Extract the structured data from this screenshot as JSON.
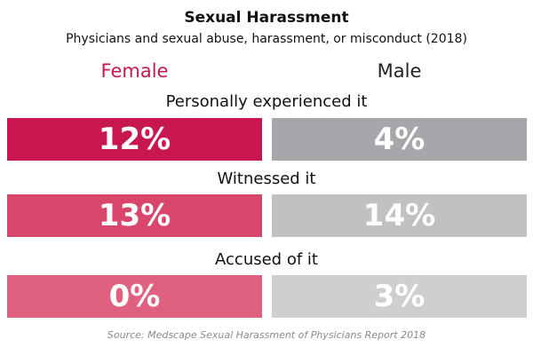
{
  "chart_data": {
    "type": "table",
    "title": "Sexual Harassment",
    "subtitle": "Physicians and sexual abuse, harassment, or misconduct (2018)",
    "columns": [
      "Female",
      "Male"
    ],
    "categories": [
      "Personally experienced it",
      "Witnessed it",
      "Accused of it"
    ],
    "series": [
      {
        "name": "Female",
        "values": [
          12,
          13,
          0
        ],
        "labels": [
          "12%",
          "13%",
          "0%"
        ]
      },
      {
        "name": "Male",
        "values": [
          4,
          14,
          3
        ],
        "labels": [
          "4%",
          "14%",
          "3%"
        ]
      }
    ],
    "colors": {
      "female": [
        "#c8174f",
        "#d8476b",
        "#e0617f"
      ],
      "male": [
        "#a7a7ab",
        "#c1c1c1",
        "#cfcfcf"
      ]
    },
    "source": "Source: Medscape Sexual Harassment of Physicians Report 2018"
  }
}
